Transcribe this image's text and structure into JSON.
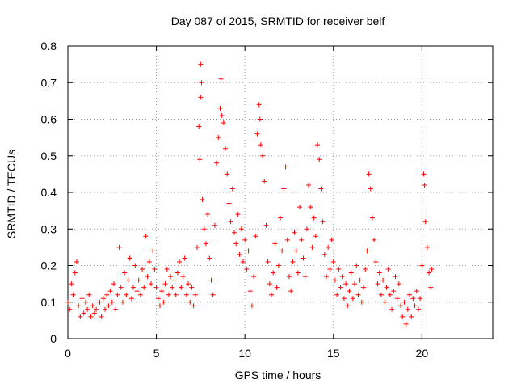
{
  "chart_data": {
    "type": "scatter",
    "title": "Day 087 of 2015, SRMTID for receiver belf",
    "xlabel": "GPS time / hours",
    "ylabel": "SRMTID / TECUs",
    "xlim": [
      0,
      24
    ],
    "ylim": [
      0,
      0.8
    ],
    "xticks": [
      0,
      5,
      10,
      15,
      20
    ],
    "xtick_labels": [
      "0",
      "5",
      "10",
      "15",
      "20"
    ],
    "yticks": [
      0,
      0.1,
      0.2,
      0.3,
      0.4,
      0.5,
      0.6,
      0.7,
      0.8
    ],
    "ytick_labels": [
      "0",
      "0.1",
      "0.2",
      "0.3",
      "0.4",
      "0.5",
      "0.6",
      "0.7",
      "0.8"
    ],
    "grid": true,
    "marker": "+",
    "color": "#ff0000",
    "series": [
      {
        "name": "belf",
        "points": [
          [
            0.0,
            0.1
          ],
          [
            0.1,
            0.08
          ],
          [
            0.2,
            0.15
          ],
          [
            0.3,
            0.12
          ],
          [
            0.4,
            0.18
          ],
          [
            0.5,
            0.21
          ],
          [
            0.6,
            0.09
          ],
          [
            0.7,
            0.06
          ],
          [
            0.8,
            0.11
          ],
          [
            0.9,
            0.07
          ],
          [
            1.0,
            0.1
          ],
          [
            1.1,
            0.08
          ],
          [
            1.2,
            0.12
          ],
          [
            1.3,
            0.06
          ],
          [
            1.4,
            0.09
          ],
          [
            1.5,
            0.07
          ],
          [
            1.6,
            0.08
          ],
          [
            1.8,
            0.1
          ],
          [
            1.9,
            0.06
          ],
          [
            2.0,
            0.11
          ],
          [
            2.1,
            0.08
          ],
          [
            2.2,
            0.12
          ],
          [
            2.3,
            0.09
          ],
          [
            2.4,
            0.13
          ],
          [
            2.5,
            0.1
          ],
          [
            2.6,
            0.15
          ],
          [
            2.7,
            0.08
          ],
          [
            2.8,
            0.12
          ],
          [
            2.9,
            0.25
          ],
          [
            3.0,
            0.14
          ],
          [
            3.1,
            0.1
          ],
          [
            3.2,
            0.18
          ],
          [
            3.3,
            0.12
          ],
          [
            3.4,
            0.16
          ],
          [
            3.5,
            0.22
          ],
          [
            3.6,
            0.11
          ],
          [
            3.7,
            0.14
          ],
          [
            3.8,
            0.2
          ],
          [
            3.9,
            0.13
          ],
          [
            4.0,
            0.16
          ],
          [
            4.1,
            0.12
          ],
          [
            4.2,
            0.19
          ],
          [
            4.3,
            0.14
          ],
          [
            4.4,
            0.28
          ],
          [
            4.5,
            0.17
          ],
          [
            4.6,
            0.21
          ],
          [
            4.7,
            0.15
          ],
          [
            4.8,
            0.24
          ],
          [
            4.9,
            0.19
          ],
          [
            5.0,
            0.14
          ],
          [
            5.1,
            0.11
          ],
          [
            5.2,
            0.09
          ],
          [
            5.3,
            0.13
          ],
          [
            5.4,
            0.1
          ],
          [
            5.5,
            0.15
          ],
          [
            5.6,
            0.19
          ],
          [
            5.7,
            0.12
          ],
          [
            5.8,
            0.17
          ],
          [
            5.9,
            0.14
          ],
          [
            6.0,
            0.16
          ],
          [
            6.1,
            0.12
          ],
          [
            6.2,
            0.18
          ],
          [
            6.3,
            0.21
          ],
          [
            6.4,
            0.14
          ],
          [
            6.5,
            0.17
          ],
          [
            6.6,
            0.22
          ],
          [
            6.7,
            0.12
          ],
          [
            6.8,
            0.15
          ],
          [
            6.9,
            0.1
          ],
          [
            7.0,
            0.14
          ],
          [
            7.1,
            0.09
          ],
          [
            7.2,
            0.12
          ],
          [
            7.3,
            0.25
          ],
          [
            7.4,
            0.58
          ],
          [
            7.5,
            0.75
          ],
          [
            7.55,
            0.7
          ],
          [
            7.5,
            0.66
          ],
          [
            7.45,
            0.49
          ],
          [
            7.6,
            0.38
          ],
          [
            7.7,
            0.3
          ],
          [
            7.8,
            0.26
          ],
          [
            7.9,
            0.34
          ],
          [
            8.0,
            0.22
          ],
          [
            8.1,
            0.16
          ],
          [
            8.2,
            0.12
          ],
          [
            8.3,
            0.31
          ],
          [
            8.4,
            0.48
          ],
          [
            8.5,
            0.55
          ],
          [
            8.6,
            0.63
          ],
          [
            8.65,
            0.71
          ],
          [
            8.7,
            0.61
          ],
          [
            8.8,
            0.59
          ],
          [
            8.9,
            0.52
          ],
          [
            9.0,
            0.45
          ],
          [
            9.1,
            0.37
          ],
          [
            9.2,
            0.32
          ],
          [
            9.3,
            0.41
          ],
          [
            9.4,
            0.29
          ],
          [
            9.5,
            0.26
          ],
          [
            9.6,
            0.34
          ],
          [
            9.7,
            0.23
          ],
          [
            9.8,
            0.3
          ],
          [
            9.9,
            0.21
          ],
          [
            10.0,
            0.27
          ],
          [
            10.1,
            0.19
          ],
          [
            10.2,
            0.24
          ],
          [
            10.3,
            0.13
          ],
          [
            10.4,
            0.09
          ],
          [
            10.5,
            0.17
          ],
          [
            10.6,
            0.28
          ],
          [
            10.7,
            0.56
          ],
          [
            10.8,
            0.64
          ],
          [
            10.85,
            0.6
          ],
          [
            10.9,
            0.53
          ],
          [
            11.0,
            0.5
          ],
          [
            11.1,
            0.43
          ],
          [
            11.2,
            0.31
          ],
          [
            11.3,
            0.21
          ],
          [
            11.4,
            0.15
          ],
          [
            11.5,
            0.12
          ],
          [
            11.6,
            0.18
          ],
          [
            11.7,
            0.26
          ],
          [
            11.8,
            0.14
          ],
          [
            11.9,
            0.2
          ],
          [
            12.0,
            0.33
          ],
          [
            12.1,
            0.24
          ],
          [
            12.2,
            0.41
          ],
          [
            12.3,
            0.47
          ],
          [
            12.4,
            0.27
          ],
          [
            12.5,
            0.17
          ],
          [
            12.6,
            0.13
          ],
          [
            12.7,
            0.21
          ],
          [
            12.8,
            0.29
          ],
          [
            12.9,
            0.24
          ],
          [
            13.0,
            0.18
          ],
          [
            13.1,
            0.36
          ],
          [
            13.2,
            0.27
          ],
          [
            13.3,
            0.22
          ],
          [
            13.4,
            0.17
          ],
          [
            13.5,
            0.3
          ],
          [
            13.6,
            0.42
          ],
          [
            13.7,
            0.36
          ],
          [
            13.8,
            0.25
          ],
          [
            13.9,
            0.33
          ],
          [
            14.0,
            0.28
          ],
          [
            14.1,
            0.53
          ],
          [
            14.2,
            0.49
          ],
          [
            14.3,
            0.41
          ],
          [
            14.4,
            0.32
          ],
          [
            14.5,
            0.23
          ],
          [
            14.6,
            0.17
          ],
          [
            14.7,
            0.25
          ],
          [
            14.8,
            0.19
          ],
          [
            14.9,
            0.27
          ],
          [
            15.0,
            0.21
          ],
          [
            15.1,
            0.16
          ],
          [
            15.2,
            0.12
          ],
          [
            15.3,
            0.19
          ],
          [
            15.4,
            0.14
          ],
          [
            15.5,
            0.17
          ],
          [
            15.6,
            0.11
          ],
          [
            15.7,
            0.15
          ],
          [
            15.8,
            0.09
          ],
          [
            15.9,
            0.13
          ],
          [
            16.0,
            0.18
          ],
          [
            16.1,
            0.11
          ],
          [
            16.2,
            0.15
          ],
          [
            16.3,
            0.2
          ],
          [
            16.4,
            0.12
          ],
          [
            16.5,
            0.16
          ],
          [
            16.6,
            0.1
          ],
          [
            16.7,
            0.14
          ],
          [
            16.8,
            0.19
          ],
          [
            16.9,
            0.24
          ],
          [
            17.0,
            0.45
          ],
          [
            17.1,
            0.41
          ],
          [
            17.2,
            0.33
          ],
          [
            17.3,
            0.27
          ],
          [
            17.4,
            0.21
          ],
          [
            17.5,
            0.15
          ],
          [
            17.6,
            0.18
          ],
          [
            17.7,
            0.12
          ],
          [
            17.8,
            0.16
          ],
          [
            17.9,
            0.1
          ],
          [
            18.0,
            0.14
          ],
          [
            18.1,
            0.19
          ],
          [
            18.2,
            0.12
          ],
          [
            18.3,
            0.08
          ],
          [
            18.4,
            0.13
          ],
          [
            18.5,
            0.17
          ],
          [
            18.6,
            0.11
          ],
          [
            18.7,
            0.15
          ],
          [
            18.8,
            0.09
          ],
          [
            18.9,
            0.06
          ],
          [
            19.0,
            0.1
          ],
          [
            19.1,
            0.04
          ],
          [
            19.2,
            0.08
          ],
          [
            19.3,
            0.12
          ],
          [
            19.4,
            0.06
          ],
          [
            19.5,
            0.11
          ],
          [
            19.6,
            0.09
          ],
          [
            19.7,
            0.13
          ],
          [
            19.8,
            0.08
          ],
          [
            19.9,
            0.11
          ],
          [
            20.0,
            0.2
          ],
          [
            20.1,
            0.45
          ],
          [
            20.15,
            0.42
          ],
          [
            20.2,
            0.32
          ],
          [
            20.3,
            0.25
          ],
          [
            20.4,
            0.18
          ],
          [
            20.5,
            0.14
          ],
          [
            20.55,
            0.19
          ]
        ]
      }
    ]
  }
}
